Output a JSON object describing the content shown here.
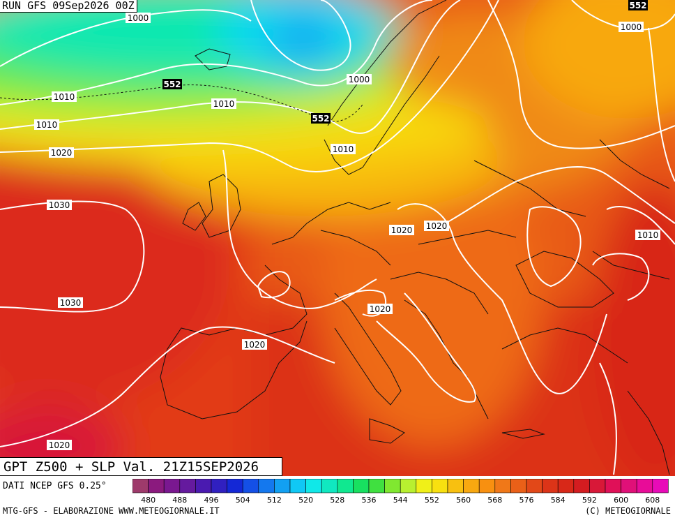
{
  "header": {
    "run": "RUN GFS 09Sep2026 00Z"
  },
  "title": "GPT Z500 + SLP Val. 21Z15SEP2026",
  "data_source": "DATI NCEP GFS 0.25°",
  "footer": {
    "left": "MTG-GFS - ELABORAZIONE WWW.METEOGIORNALE.IT",
    "right": "(C) METEOGIORNALE"
  },
  "map": {
    "isobar_labels": [
      "1000",
      "1010",
      "1020",
      "1030",
      "1030",
      "1020",
      "1020",
      "1020",
      "1020",
      "1010",
      "1000",
      "1010",
      "1010",
      "1000",
      "1010",
      "1020",
      "1010",
      "1020"
    ],
    "gpt_labels": [
      "552",
      "552",
      "552"
    ]
  },
  "colorbar": {
    "ticks": [
      "480",
      "488",
      "496",
      "504",
      "512",
      "520",
      "528",
      "536",
      "544",
      "552",
      "560",
      "568",
      "576",
      "584",
      "592",
      "600",
      "608"
    ],
    "colors": [
      "#9e3a6b",
      "#8b1a7e",
      "#7a1890",
      "#651a9e",
      "#4a1ab0",
      "#3020c0",
      "#1428d6",
      "#1450e6",
      "#1478ee",
      "#12a0f2",
      "#10c8f5",
      "#10e8e8",
      "#10e8c0",
      "#10e890",
      "#18e060",
      "#40e040",
      "#80e830",
      "#b8f030",
      "#f0f018",
      "#f8e010",
      "#f8c010",
      "#f8a810",
      "#f89010",
      "#f07818",
      "#ea6018",
      "#e24818",
      "#dc3418",
      "#d82818",
      "#d41c20",
      "#d81838",
      "#e01058",
      "#e01078",
      "#e80c98",
      "#e80ab8"
    ]
  }
}
